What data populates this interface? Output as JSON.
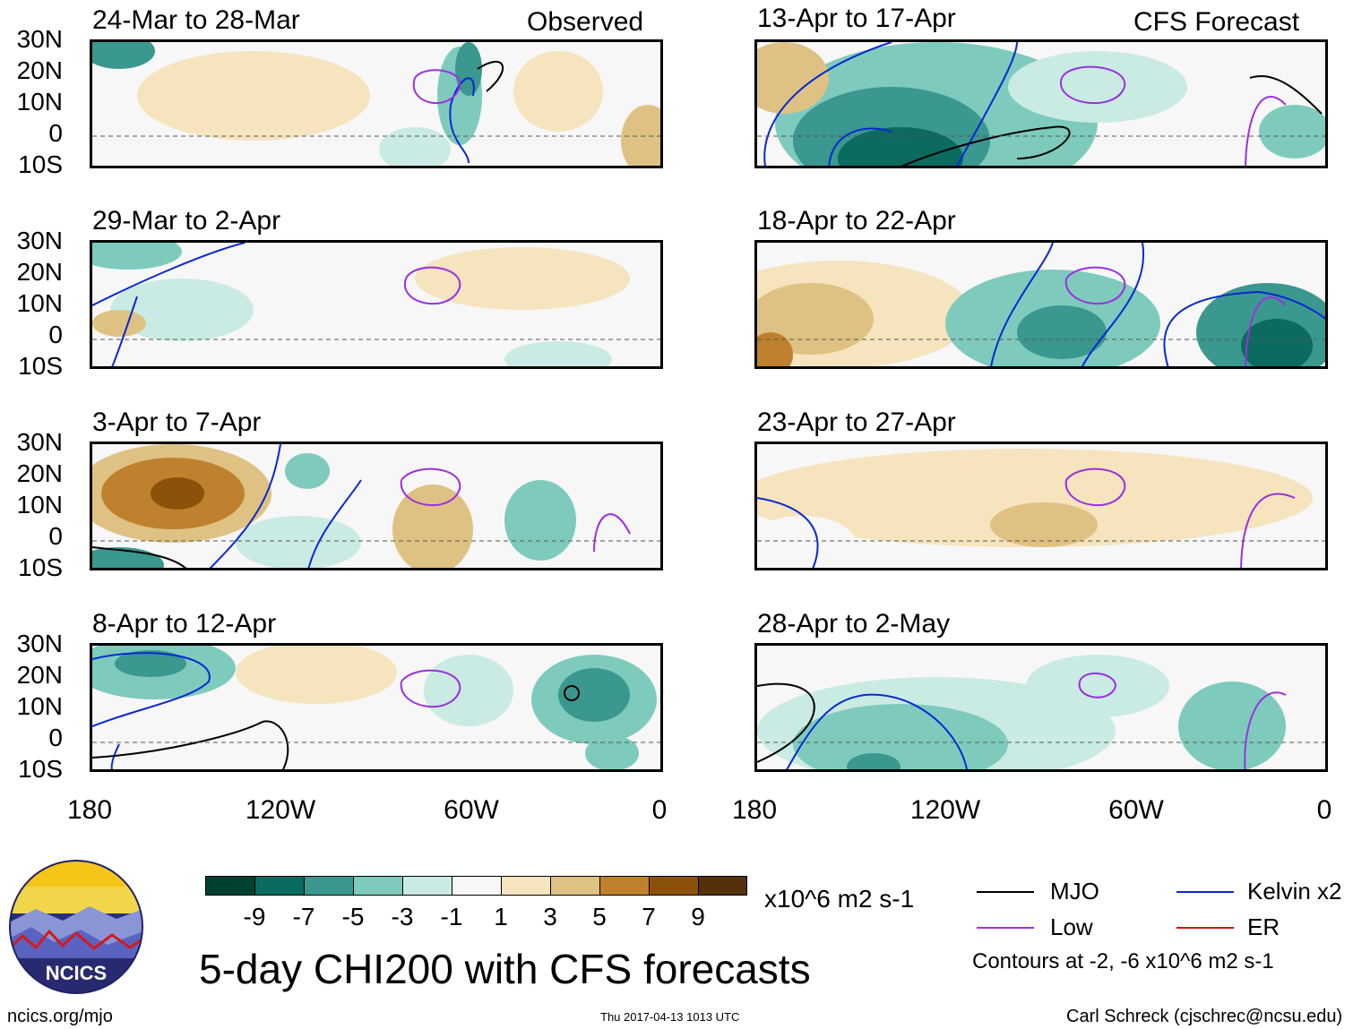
{
  "header": {
    "observed_label": "Observed",
    "forecast_label": "CFS Forecast"
  },
  "panels": {
    "left": [
      {
        "title": "24-Mar to 28-Mar"
      },
      {
        "title": "29-Mar to 2-Apr"
      },
      {
        "title": "3-Apr to 7-Apr"
      },
      {
        "title": "8-Apr to 12-Apr"
      }
    ],
    "right": [
      {
        "title": "13-Apr to 17-Apr"
      },
      {
        "title": "18-Apr to 22-Apr"
      },
      {
        "title": "23-Apr to 27-Apr"
      },
      {
        "title": "28-Apr to 2-May"
      }
    ]
  },
  "axes": {
    "lat_labels": [
      "30N",
      "20N",
      "10N",
      "0",
      "10S"
    ],
    "lon_labels": [
      "180",
      "120W",
      "60W",
      "0"
    ]
  },
  "colorbar": {
    "colors": [
      "#00402f",
      "#0b6b5f",
      "#3a988e",
      "#7ecbbd",
      "#c9ebe3",
      "#f7f7f7",
      "#f5e4bd",
      "#dfc283",
      "#bf812d",
      "#8c510a",
      "#54300b"
    ],
    "ticks": [
      "-9",
      "-7",
      "-5",
      "-3",
      "-1",
      "1",
      "3",
      "5",
      "7",
      "9"
    ],
    "units": "x10^6 m2 s-1"
  },
  "title": "5-day CHI200 with CFS forecasts",
  "legend": {
    "items": [
      {
        "label": "MJO",
        "color": "#000000"
      },
      {
        "label": "Kelvin x2",
        "color": "#0a28d2"
      },
      {
        "label": "Low",
        "color": "#9b30e0"
      },
      {
        "label": "ER",
        "color": "#d2140a"
      }
    ],
    "contour_note": "Contours at -2, -6 x10^6 m2 s-1"
  },
  "logo": {
    "text": "NCICS"
  },
  "footer": {
    "url": "ncics.org/mjo",
    "timestamp": "Thu 2017-04-13 1013 UTC",
    "credit": "Carl Schreck (cjschrec@ncsu.edu)"
  }
}
